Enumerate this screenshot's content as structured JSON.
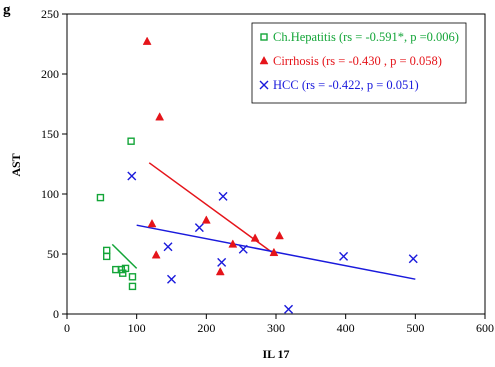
{
  "chart_data": {
    "type": "scatter",
    "title": "g",
    "xlabel": "IL 17",
    "ylabel": "AST",
    "xlim": [
      0,
      600
    ],
    "ylim": [
      0,
      250
    ],
    "xticks": [
      0,
      100,
      200,
      300,
      400,
      500,
      600
    ],
    "yticks": [
      0,
      50,
      100,
      150,
      200,
      250
    ],
    "grid": false,
    "legend_position": "top-right",
    "series": [
      {
        "name": "Ch.Hepatitis (rs = -0.591*, p =0.006)",
        "color": "#13a538",
        "marker": "square",
        "points": [
          [
            48,
            97
          ],
          [
            57,
            53
          ],
          [
            57,
            48
          ],
          [
            70,
            37
          ],
          [
            78,
            37
          ],
          [
            80,
            34
          ],
          [
            84,
            38
          ],
          [
            92,
            144
          ],
          [
            94,
            31
          ],
          [
            94,
            23
          ]
        ],
        "trendline": [
          [
            65,
            58
          ],
          [
            100,
            38
          ]
        ]
      },
      {
        "name": "Cirrhosis (rs = -0.430 , p = 0.058)",
        "color": "#e5141a",
        "marker": "triangle",
        "points": [
          [
            115,
            227
          ],
          [
            122,
            75
          ],
          [
            128,
            49
          ],
          [
            133,
            164
          ],
          [
            200,
            78
          ],
          [
            220,
            35
          ],
          [
            238,
            58
          ],
          [
            270,
            63
          ],
          [
            297,
            51
          ],
          [
            305,
            65
          ]
        ],
        "trendline": [
          [
            118,
            126
          ],
          [
            300,
            49
          ]
        ]
      },
      {
        "name": "HCC (rs = -0.422, p = 0.051)",
        "color": "#1a1adc",
        "marker": "x",
        "points": [
          [
            93,
            115
          ],
          [
            145,
            56
          ],
          [
            150,
            29
          ],
          [
            190,
            72
          ],
          [
            222,
            43
          ],
          [
            224,
            98
          ],
          [
            253,
            54
          ],
          [
            318,
            4
          ],
          [
            397,
            48
          ],
          [
            497,
            46
          ]
        ],
        "trendline": [
          [
            100,
            74
          ],
          [
            500,
            29
          ]
        ]
      }
    ]
  }
}
